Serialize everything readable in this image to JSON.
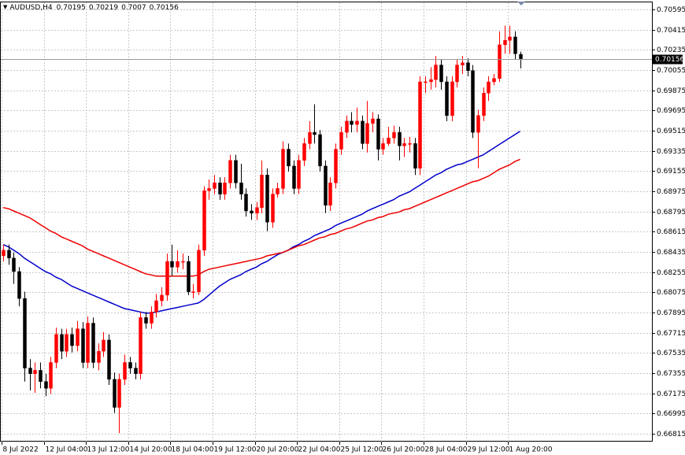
{
  "chart_data": {
    "type": "candlestick",
    "symbol": "AUDUSD,H4",
    "ylim": [
      0.66745,
      0.70658
    ],
    "yticks": [
      0.70595,
      0.70415,
      0.70235,
      0.70055,
      0.69875,
      0.69695,
      0.69515,
      0.69335,
      0.69155,
      0.68975,
      0.68795,
      0.68615,
      0.68435,
      0.68255,
      0.68075,
      0.67895,
      0.67715,
      0.67535,
      0.67355,
      0.67175,
      0.66995,
      0.66815
    ],
    "grid": true,
    "up_color": "#ff0000",
    "down_color": "#000000",
    "categories": [
      "8 Jul 2022",
      null,
      null,
      null,
      null,
      null,
      null,
      null,
      "12 Jul 04:00",
      null,
      null,
      null,
      null,
      null,
      null,
      null,
      "13 Jul 12:00",
      null,
      null,
      null,
      null,
      null,
      null,
      null,
      "14 Jul 20:00",
      null,
      null,
      null,
      null,
      null,
      null,
      null,
      "18 Jul 04:00",
      null,
      null,
      null,
      null,
      null,
      null,
      null,
      "19 Jul 12:00",
      null,
      null,
      null,
      null,
      null,
      null,
      null,
      "20 Jul 20:00",
      null,
      null,
      null,
      null,
      null,
      null,
      null,
      "22 Jul 04:00",
      null,
      null,
      null,
      null,
      null,
      null,
      null,
      "25 Jul 12:00",
      null,
      null,
      null,
      null,
      null,
      null,
      null,
      "26 Jul 20:00",
      null,
      null,
      null,
      null,
      null,
      null,
      null,
      "28 Jul 04:00",
      null,
      null,
      null,
      null,
      null,
      null,
      null,
      "29 Jul 12:00",
      null,
      null,
      null,
      null,
      null,
      null,
      null,
      "1 Aug 20:00",
      null,
      null
    ],
    "series": [
      {
        "open": [
          0.684,
          0.6845,
          0.6838,
          0.6826,
          0.6802,
          0.674,
          0.6735,
          0.6738,
          0.6728,
          0.6722,
          0.6745,
          0.677,
          0.6755,
          0.677,
          0.676,
          0.6775,
          0.6745,
          0.678,
          0.6745,
          0.6755,
          0.6765,
          0.673,
          0.6705,
          0.673,
          0.6745,
          0.674,
          0.6735,
          0.6785,
          0.678,
          0.679,
          0.68,
          0.6805,
          0.6835,
          0.683,
          0.6835,
          0.6835,
          0.6808,
          0.6808,
          0.6845,
          0.6898,
          0.69,
          0.6905,
          0.6895,
          0.6905,
          0.6925,
          0.6905,
          0.6895,
          0.688,
          0.6878,
          0.6883,
          0.6912,
          0.687,
          0.6895,
          0.69,
          0.6935,
          0.692,
          0.69,
          0.6925,
          0.694,
          0.695,
          0.6948,
          0.692,
          0.6885,
          0.6905,
          0.6935,
          0.695,
          0.696,
          0.6957,
          0.696,
          0.694,
          0.6958,
          0.6962,
          0.6935,
          0.694,
          0.6945,
          0.695,
          0.6938,
          0.694,
          0.694,
          0.6918,
          0.6995,
          0.6995,
          0.6997,
          0.701,
          0.6995,
          0.6965,
          0.6995,
          0.701,
          0.7012,
          0.7005,
          0.695,
          0.6965,
          0.6985,
          0.6995,
          0.6998,
          0.7028,
          0.7032,
          0.7035,
          0.70195
        ],
        "high": [
          0.685,
          0.685,
          0.6843,
          0.683,
          0.6808,
          0.6748,
          0.6745,
          0.6745,
          0.6735,
          0.675,
          0.6776,
          0.6775,
          0.6775,
          0.6776,
          0.6782,
          0.6781,
          0.6786,
          0.6785,
          0.6762,
          0.6772,
          0.677,
          0.6736,
          0.6735,
          0.6752,
          0.675,
          0.6745,
          0.679,
          0.679,
          0.6795,
          0.6806,
          0.6812,
          0.6842,
          0.685,
          0.6845,
          0.6842,
          0.684,
          0.6815,
          0.685,
          0.6902,
          0.6908,
          0.6912,
          0.691,
          0.691,
          0.693,
          0.693,
          0.6922,
          0.69,
          0.6886,
          0.6888,
          0.6925,
          0.6918,
          0.69,
          0.6905,
          0.6942,
          0.694,
          0.6925,
          0.693,
          0.6945,
          0.696,
          0.6975,
          0.6952,
          0.6925,
          0.691,
          0.694,
          0.6955,
          0.6965,
          0.6968,
          0.6972,
          0.6965,
          0.6978,
          0.6968,
          0.6966,
          0.6945,
          0.6955,
          0.6956,
          0.6955,
          0.6945,
          0.6946,
          0.6945,
          0.7,
          0.7,
          0.7008,
          0.7018,
          0.7015,
          0.7,
          0.7,
          0.7015,
          0.7018,
          0.7016,
          0.701,
          0.697,
          0.699,
          0.7,
          0.7002,
          0.704,
          0.7045,
          0.7045,
          0.704,
          0.70219
        ],
        "low": [
          0.6835,
          0.6832,
          0.6815,
          0.6795,
          0.6728,
          0.672,
          0.6718,
          0.6722,
          0.6715,
          0.6717,
          0.674,
          0.6748,
          0.675,
          0.6754,
          0.6755,
          0.674,
          0.674,
          0.674,
          0.6738,
          0.675,
          0.6725,
          0.67,
          0.6682,
          0.6725,
          0.6735,
          0.673,
          0.673,
          0.6775,
          0.6775,
          0.6785,
          0.6795,
          0.68,
          0.6822,
          0.6825,
          0.6828,
          0.6805,
          0.6802,
          0.6805,
          0.684,
          0.689,
          0.6895,
          0.689,
          0.689,
          0.69,
          0.69,
          0.689,
          0.6875,
          0.6872,
          0.6872,
          0.6878,
          0.6862,
          0.6865,
          0.6892,
          0.6895,
          0.6915,
          0.6895,
          0.6895,
          0.692,
          0.6935,
          0.694,
          0.6915,
          0.6878,
          0.688,
          0.69,
          0.693,
          0.6945,
          0.695,
          0.695,
          0.6935,
          0.6932,
          0.695,
          0.6925,
          0.693,
          0.6938,
          0.694,
          0.6925,
          0.6928,
          0.6932,
          0.6912,
          0.6912,
          0.6985,
          0.6988,
          0.699,
          0.6988,
          0.696,
          0.696,
          0.699,
          0.7002,
          0.7,
          0.6945,
          0.6918,
          0.696,
          0.6978,
          0.6992,
          0.6995,
          0.702,
          0.702,
          0.7015,
          0.7007
        ],
        "close": [
          0.6845,
          0.6838,
          0.6826,
          0.6802,
          0.674,
          0.6735,
          0.6738,
          0.6728,
          0.6722,
          0.6745,
          0.677,
          0.6755,
          0.677,
          0.676,
          0.6775,
          0.6745,
          0.678,
          0.6745,
          0.6755,
          0.6765,
          0.673,
          0.6705,
          0.673,
          0.6745,
          0.674,
          0.6735,
          0.6785,
          0.678,
          0.679,
          0.68,
          0.6805,
          0.6835,
          0.683,
          0.6835,
          0.6835,
          0.6808,
          0.6808,
          0.6845,
          0.6898,
          0.69,
          0.6905,
          0.6895,
          0.6905,
          0.6925,
          0.6905,
          0.6895,
          0.688,
          0.6878,
          0.6883,
          0.6912,
          0.687,
          0.6895,
          0.69,
          0.6935,
          0.692,
          0.69,
          0.6925,
          0.694,
          0.695,
          0.6948,
          0.692,
          0.6885,
          0.6905,
          0.6935,
          0.695,
          0.696,
          0.6957,
          0.696,
          0.694,
          0.6958,
          0.6962,
          0.6935,
          0.694,
          0.6945,
          0.695,
          0.6938,
          0.694,
          0.694,
          0.6918,
          0.6995,
          0.6995,
          0.6997,
          0.701,
          0.6995,
          0.6965,
          0.6995,
          0.701,
          0.7012,
          0.7005,
          0.695,
          0.6965,
          0.6985,
          0.6995,
          0.6998,
          0.7028,
          0.7032,
          0.7035,
          0.702,
          0.70156
        ]
      }
    ],
    "lines": [
      {
        "color": "#0000cc",
        "values": [
          0.685,
          0.6848,
          0.6845,
          0.6842,
          0.6838,
          0.6835,
          0.6832,
          0.6829,
          0.6826,
          0.6824,
          0.6821,
          0.6819,
          0.6816,
          0.6813,
          0.6811,
          0.6809,
          0.6807,
          0.6805,
          0.6803,
          0.6801,
          0.6799,
          0.6797,
          0.6795,
          0.6793,
          0.6792,
          0.6791,
          0.679,
          0.6789,
          0.6789,
          0.679,
          0.6791,
          0.6792,
          0.6793,
          0.6794,
          0.6795,
          0.6796,
          0.6797,
          0.6798,
          0.6801,
          0.6805,
          0.6809,
          0.6813,
          0.6816,
          0.6819,
          0.6821,
          0.6823,
          0.6826,
          0.6828,
          0.683,
          0.6833,
          0.6835,
          0.6838,
          0.6841,
          0.6843,
          0.6845,
          0.6848,
          0.685,
          0.6853,
          0.6855,
          0.6858,
          0.686,
          0.6862,
          0.6864,
          0.6867,
          0.6869,
          0.6871,
          0.6873,
          0.6875,
          0.6877,
          0.688,
          0.6882,
          0.6884,
          0.6886,
          0.6888,
          0.689,
          0.6893,
          0.6895,
          0.6897,
          0.69,
          0.6903,
          0.6906,
          0.6909,
          0.6912,
          0.6914,
          0.6917,
          0.6919,
          0.6921,
          0.6922,
          0.6924,
          0.6926,
          0.6928,
          0.693,
          0.6933,
          0.6936,
          0.6939,
          0.6942,
          0.6945,
          0.6948,
          0.6951
        ]
      },
      {
        "color": "#ee0000",
        "values": [
          0.6883,
          0.6882,
          0.688,
          0.6878,
          0.6876,
          0.6874,
          0.6871,
          0.6868,
          0.6865,
          0.6862,
          0.686,
          0.6857,
          0.6855,
          0.6853,
          0.6851,
          0.6849,
          0.6846,
          0.6844,
          0.6842,
          0.684,
          0.6838,
          0.6836,
          0.6834,
          0.6832,
          0.683,
          0.6828,
          0.6826,
          0.6824,
          0.6823,
          0.6822,
          0.6822,
          0.6822,
          0.6822,
          0.6822,
          0.6822,
          0.6822,
          0.6822,
          0.6823,
          0.6826,
          0.6828,
          0.6829,
          0.683,
          0.6831,
          0.6832,
          0.6833,
          0.6834,
          0.6835,
          0.6836,
          0.6837,
          0.6838,
          0.684,
          0.6841,
          0.6842,
          0.6843,
          0.6845,
          0.6847,
          0.6849,
          0.685,
          0.6852,
          0.6854,
          0.6856,
          0.6857,
          0.6859,
          0.686,
          0.6862,
          0.6864,
          0.6865,
          0.6867,
          0.6869,
          0.6871,
          0.6872,
          0.6874,
          0.6875,
          0.6877,
          0.6878,
          0.6879,
          0.6881,
          0.6882,
          0.6884,
          0.6886,
          0.6888,
          0.689,
          0.6892,
          0.6894,
          0.6896,
          0.6898,
          0.69,
          0.6902,
          0.6904,
          0.6906,
          0.6907,
          0.6909,
          0.6911,
          0.6914,
          0.6917,
          0.6919,
          0.6921,
          0.6924,
          0.6926
        ]
      }
    ]
  }
}
